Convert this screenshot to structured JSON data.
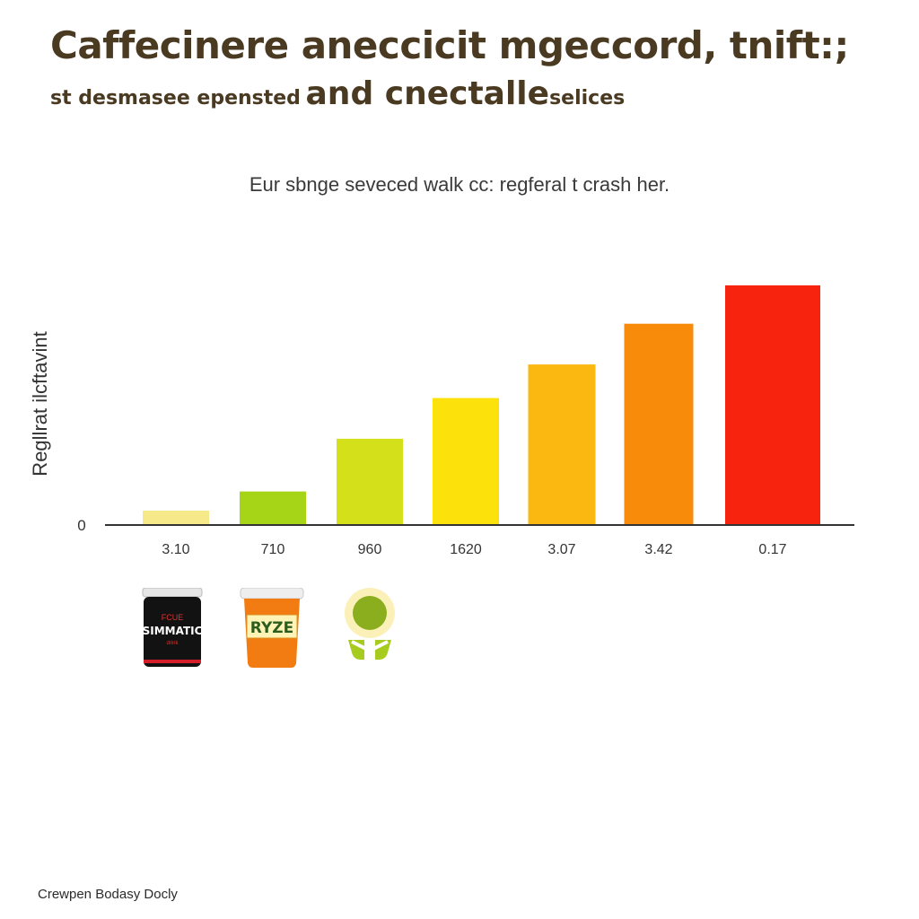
{
  "header": {
    "title": "Caffecinere aneccicit mgeccord, tnift:;",
    "subtitle_small": "st desmasee epensted",
    "subtitle_large": "and cnectalle",
    "subtitle_tail": "selices"
  },
  "caption": "Eur sbnge seveced walk cc: regferal t crash her.",
  "footer": "Crewpen Bodasy Docly",
  "chart_data": {
    "type": "bar",
    "categories": [
      "3.10",
      "710",
      "960",
      "1620",
      "3.07",
      "3.42",
      "0.17"
    ],
    "values": [
      6,
      14,
      36,
      53,
      67,
      84,
      100
    ],
    "ylabel": "Regllrat ilcftavint",
    "y_tick_labels": [
      "0"
    ],
    "ylim": [
      0,
      100
    ],
    "grid": false,
    "colors": [
      "#f5e98a",
      "#a6d416",
      "#d4e01a",
      "#fce10a",
      "#fbb810",
      "#f98b0a",
      "#f8230f"
    ]
  },
  "icons": [
    {
      "name": "black-can-icon",
      "label_top": "FCUE",
      "label_main": "SIMMATIC",
      "label_bottom": "drink"
    },
    {
      "name": "orange-cup-icon",
      "label_main": "RYZE"
    },
    {
      "name": "green-tea-icon"
    }
  ]
}
